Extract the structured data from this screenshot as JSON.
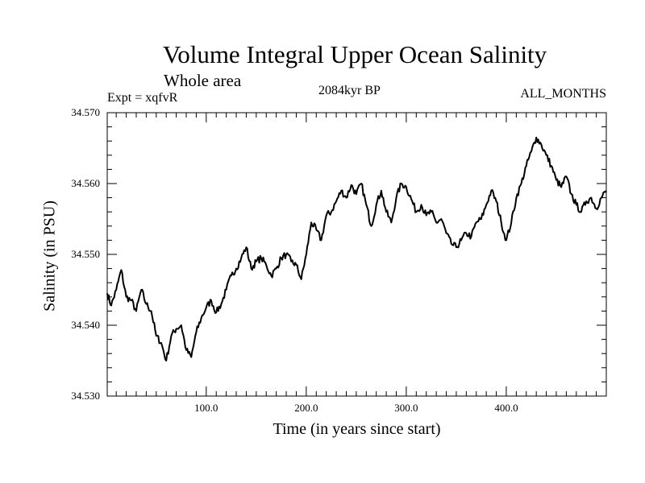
{
  "chart_data": {
    "type": "line",
    "title": "Volume Integral Upper Ocean Salinity",
    "subtitle": "Whole area",
    "top_left_label": "Expt = xqfvR",
    "top_center_label": "2084kyr BP",
    "top_right_label": "ALL_MONTHS",
    "xlabel": "Time (in years since start)",
    "ylabel": "Salinity (in PSU)",
    "xlim": [
      1,
      500
    ],
    "ylim": [
      34.53,
      34.57
    ],
    "x_ticks": [
      100,
      200,
      300,
      400
    ],
    "x_tick_labels": [
      "100.0",
      "200.0",
      "300.0",
      "400.0"
    ],
    "y_ticks": [
      34.53,
      34.54,
      34.55,
      34.56,
      34.57
    ],
    "y_tick_labels": [
      "34.530",
      "34.540",
      "34.550",
      "34.560",
      "34.570"
    ],
    "series": [
      {
        "name": "Salinity",
        "color": "#000000",
        "x": [
          1,
          5,
          10,
          15,
          20,
          25,
          30,
          35,
          40,
          45,
          50,
          55,
          60,
          65,
          70,
          75,
          80,
          85,
          90,
          95,
          100,
          105,
          110,
          115,
          120,
          125,
          130,
          135,
          140,
          145,
          150,
          155,
          160,
          165,
          170,
          175,
          180,
          185,
          190,
          195,
          200,
          205,
          210,
          215,
          220,
          225,
          230,
          235,
          240,
          245,
          250,
          255,
          260,
          265,
          270,
          275,
          280,
          285,
          290,
          295,
          300,
          305,
          310,
          315,
          320,
          325,
          330,
          335,
          340,
          345,
          350,
          355,
          360,
          365,
          370,
          375,
          380,
          385,
          390,
          395,
          400,
          405,
          410,
          415,
          420,
          425,
          430,
          435,
          440,
          445,
          450,
          455,
          460,
          465,
          470,
          475,
          480,
          485,
          490,
          495,
          500
        ],
        "values": [
          34.5445,
          34.5428,
          34.545,
          34.5478,
          34.544,
          34.5435,
          34.542,
          34.545,
          34.543,
          34.542,
          34.5385,
          34.5375,
          34.535,
          34.5385,
          34.5395,
          34.54,
          34.5365,
          34.5355,
          34.539,
          34.541,
          34.5425,
          34.5435,
          34.5418,
          34.543,
          34.545,
          34.547,
          34.548,
          34.5495,
          34.551,
          34.548,
          34.549,
          34.5495,
          34.5485,
          34.547,
          34.548,
          34.5495,
          34.55,
          34.549,
          34.5485,
          34.5465,
          34.55,
          34.5545,
          34.5535,
          34.552,
          34.5555,
          34.556,
          34.5575,
          34.559,
          34.558,
          34.5598,
          34.5585,
          34.56,
          34.557,
          34.554,
          34.557,
          34.559,
          34.556,
          34.5545,
          34.558,
          34.56,
          34.5595,
          34.5578,
          34.556,
          34.557,
          34.5555,
          34.556,
          34.5545,
          34.555,
          34.553,
          34.5515,
          34.551,
          34.552,
          34.553,
          34.5525,
          34.5545,
          34.555,
          34.557,
          34.559,
          34.5575,
          34.5545,
          34.552,
          34.5545,
          34.558,
          34.56,
          34.5625,
          34.5645,
          34.5665,
          34.5655,
          34.564,
          34.5625,
          34.5605,
          34.5595,
          34.561,
          34.5585,
          34.557,
          34.556,
          34.5575,
          34.558,
          34.5565,
          34.558,
          34.559
        ]
      }
    ]
  }
}
